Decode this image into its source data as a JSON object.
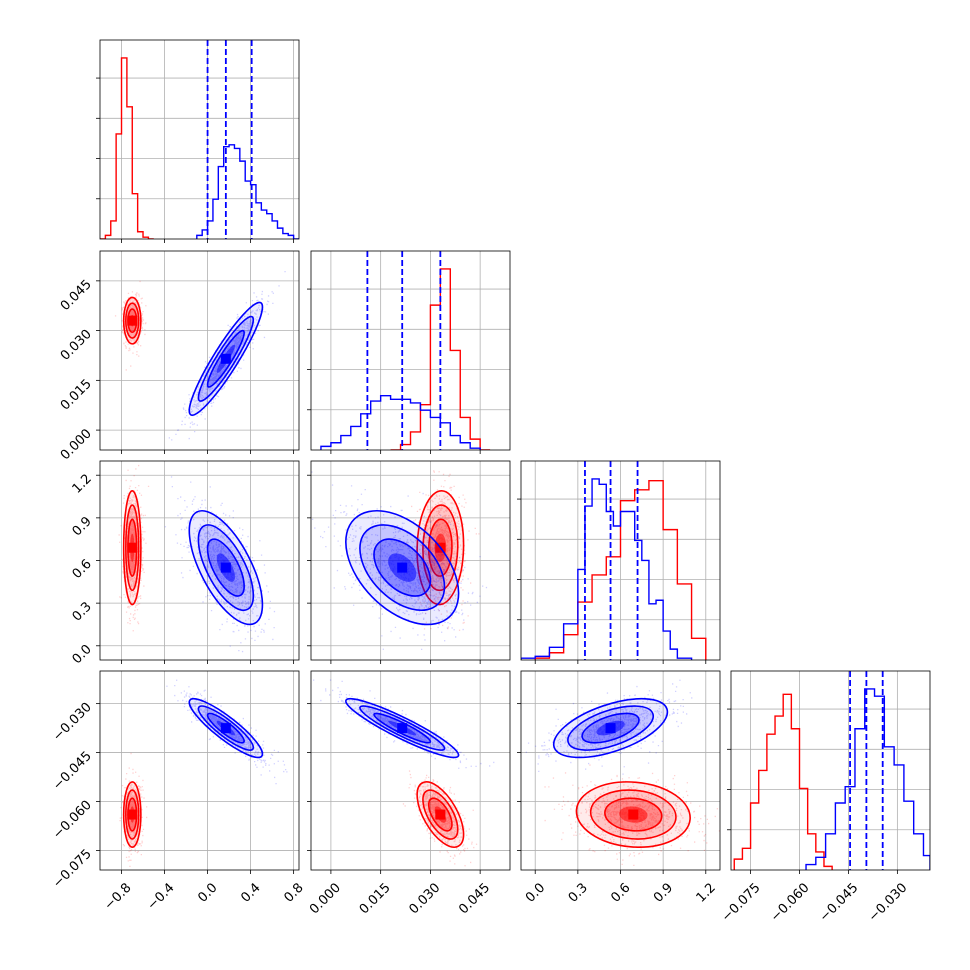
{
  "chart_data": {
    "type": "corner",
    "title": "",
    "grid": true,
    "legend": "none",
    "parameters": [
      {
        "range": [
          -1.0,
          0.85
        ],
        "ticks": [
          -0.8,
          -0.4,
          0.0,
          0.4,
          0.8
        ],
        "tick_labels": [
          "−0.8",
          "−0.4",
          "0.0",
          "0.4",
          "0.8"
        ]
      },
      {
        "range": [
          -0.006,
          0.054
        ],
        "ticks": [
          0.0,
          0.015,
          0.03,
          0.045
        ],
        "tick_labels": [
          "0.000",
          "0.015",
          "0.030",
          "0.045"
        ]
      },
      {
        "range": [
          -0.1,
          1.3
        ],
        "ticks": [
          0.0,
          0.3,
          0.6,
          0.9,
          1.2
        ],
        "tick_labels": [
          "0.0",
          "0.3",
          "0.6",
          "0.9",
          "1.2"
        ]
      },
      {
        "range": [
          -0.081,
          -0.02
        ],
        "ticks": [
          -0.075,
          -0.06,
          -0.045,
          -0.03
        ],
        "tick_labels": [
          "−0.075",
          "−0.060",
          "−0.045",
          "−0.030"
        ]
      }
    ],
    "series": [
      {
        "color": "#ff0000",
        "marginals": [
          {
            "bins": [
              -1.0,
              -0.95,
              -0.9,
              -0.85,
              -0.8,
              -0.75,
              -0.7,
              -0.65,
              -0.6,
              -0.55,
              -0.5
            ],
            "counts": [
              0,
              0.02,
              0.1,
              0.58,
              1.0,
              0.73,
              0.25,
              0.04,
              0.01,
              0
            ]
          },
          {
            "bins": [
              0.018,
              0.021,
              0.024,
              0.027,
              0.03,
              0.033,
              0.036,
              0.039,
              0.042,
              0.045,
              0.048
            ],
            "counts": [
              0.0,
              0.03,
              0.1,
              0.25,
              0.8,
              1.0,
              0.55,
              0.18,
              0.06,
              0.0
            ]
          },
          {
            "bins": [
              0.0,
              0.1,
              0.2,
              0.3,
              0.4,
              0.5,
              0.6,
              0.7,
              0.8,
              0.9,
              1.0,
              1.1,
              1.2
            ],
            "counts": [
              0.01,
              0.04,
              0.14,
              0.32,
              0.47,
              0.57,
              0.88,
              0.94,
              0.99,
              0.72,
              0.42,
              0.12
            ]
          },
          {
            "bins": [
              -0.08,
              -0.0775,
              -0.075,
              -0.0725,
              -0.07,
              -0.0675,
              -0.065,
              -0.0625,
              -0.06,
              -0.0575,
              -0.055,
              -0.0525,
              -0.05
            ],
            "counts": [
              0.06,
              0.12,
              0.37,
              0.55,
              0.75,
              0.85,
              0.97,
              0.78,
              0.45,
              0.2,
              0.1,
              0.02
            ]
          }
        ],
        "blobs": {
          "0-1": {
            "center": [
              -0.7,
              0.033
            ],
            "sd": [
              0.04,
              0.0035
            ],
            "rho": 0.0
          },
          "0-2": {
            "center": [
              -0.7,
              0.69
            ],
            "sd": [
              0.04,
              0.2
            ],
            "rho": 0.0
          },
          "1-2": {
            "center": [
              0.033,
              0.69
            ],
            "sd": [
              0.0035,
              0.2
            ],
            "rho": 0.05
          },
          "0-3": {
            "center": [
              -0.7,
              -0.064
            ],
            "sd": [
              0.04,
              0.005
            ],
            "rho": 0.0
          },
          "1-3": {
            "center": [
              0.033,
              -0.064
            ],
            "sd": [
              0.0035,
              0.005
            ],
            "rho": -0.6
          },
          "2-3": {
            "center": [
              0.69,
              -0.064
            ],
            "sd": [
              0.2,
              0.005
            ],
            "rho": -0.1
          }
        }
      },
      {
        "color": "#0000ff",
        "quantiles": [
          [
            0.0,
            0.17,
            0.41
          ],
          [
            0.011,
            0.0215,
            0.033
          ],
          [
            0.35,
            0.53,
            0.72
          ],
          [
            -0.0445,
            -0.0395,
            -0.0345
          ]
        ],
        "marginals": [
          {
            "bins": [
              -0.1,
              -0.05,
              0.0,
              0.05,
              0.1,
              0.15,
              0.2,
              0.25,
              0.3,
              0.35,
              0.4,
              0.45,
              0.5,
              0.55,
              0.6,
              0.65,
              0.7,
              0.75,
              0.8,
              0.85
            ],
            "counts": [
              0.02,
              0.05,
              0.1,
              0.22,
              0.4,
              0.51,
              0.52,
              0.5,
              0.43,
              0.32,
              0.3,
              0.2,
              0.16,
              0.14,
              0.1,
              0.06,
              0.03,
              0.02,
              0.0
            ]
          },
          {
            "bins": [
              -0.003,
              0.0,
              0.003,
              0.006,
              0.009,
              0.012,
              0.015,
              0.018,
              0.021,
              0.024,
              0.027,
              0.03,
              0.033,
              0.036,
              0.039,
              0.042,
              0.045
            ],
            "counts": [
              0.02,
              0.04,
              0.08,
              0.13,
              0.2,
              0.27,
              0.3,
              0.28,
              0.28,
              0.26,
              0.22,
              0.18,
              0.15,
              0.08,
              0.04,
              0.01
            ]
          },
          {
            "bins": [
              -0.1,
              0.0,
              0.1,
              0.2,
              0.3,
              0.35,
              0.4,
              0.45,
              0.5,
              0.55,
              0.6,
              0.65,
              0.7,
              0.75,
              0.8,
              0.85,
              0.9,
              0.95,
              1.0,
              1.1
            ],
            "counts": [
              0.01,
              0.02,
              0.07,
              0.2,
              0.5,
              0.85,
              1.0,
              0.97,
              0.82,
              0.74,
              0.82,
              0.82,
              0.66,
              0.55,
              0.31,
              0.33,
              0.16,
              0.06,
              0.01
            ]
          },
          {
            "bins": [
              -0.058,
              -0.055,
              -0.052,
              -0.049,
              -0.046,
              -0.043,
              -0.04,
              -0.037,
              -0.034,
              -0.031,
              -0.028,
              -0.025,
              -0.022,
              -0.02
            ],
            "counts": [
              0.03,
              0.07,
              0.2,
              0.37,
              0.46,
              0.78,
              1.0,
              0.96,
              0.68,
              0.58,
              0.38,
              0.2,
              0.08
            ]
          }
        ],
        "blobs": {
          "0-1": {
            "center": [
              0.17,
              0.0215
            ],
            "sd": [
              0.17,
              0.0085
            ],
            "rho": 0.92
          },
          "0-2": {
            "center": [
              0.17,
              0.55
            ],
            "sd": [
              0.17,
              0.2
            ],
            "rho": -0.65
          },
          "1-2": {
            "center": [
              0.0215,
              0.55
            ],
            "sd": [
              0.0085,
              0.2
            ],
            "rho": -0.45
          },
          "0-3": {
            "center": [
              0.17,
              -0.0375
            ],
            "sd": [
              0.17,
              0.0045
            ],
            "rho": -0.88
          },
          "1-3": {
            "center": [
              0.0215,
              -0.0375
            ],
            "sd": [
              0.0085,
              0.0045
            ],
            "rho": -0.92
          },
          "2-3": {
            "center": [
              0.53,
              -0.0375
            ],
            "sd": [
              0.2,
              0.0045
            ],
            "rho": 0.55
          }
        }
      }
    ]
  }
}
